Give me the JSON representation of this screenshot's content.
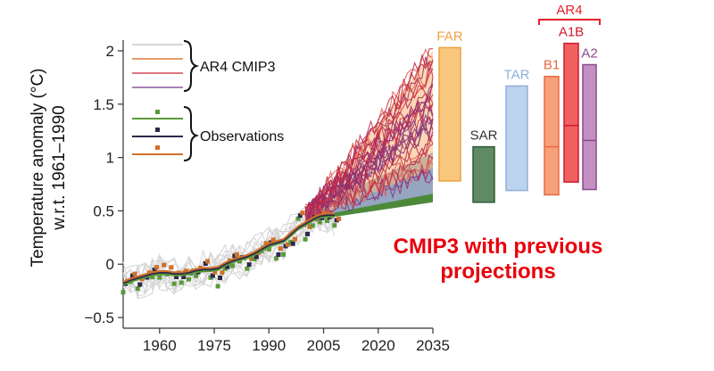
{
  "chart_data": {
    "type": "line",
    "caption_line1": "CMIP3 with previous",
    "caption_line2": "projections",
    "ylabel_line1": "Temperature anomaly (°C)",
    "ylabel_line2": "w.r.t. 1961–1990",
    "xlim": [
      1950,
      2035
    ],
    "ylim": [
      -0.6,
      2.1
    ],
    "x_ticks": [
      {
        "value": 1960,
        "label": "1960"
      },
      {
        "value": 1975,
        "label": "1975"
      },
      {
        "value": 1990,
        "label": "1990"
      },
      {
        "value": 2005,
        "label": "2005"
      },
      {
        "value": 2020,
        "label": "2020"
      },
      {
        "value": 2035,
        "label": "2035"
      }
    ],
    "y_ticks": [
      {
        "value": -0.5,
        "label": "−0.5"
      },
      {
        "value": 0,
        "label": "0"
      },
      {
        "value": 0.5,
        "label": "0.5"
      },
      {
        "value": 1,
        "label": "1"
      },
      {
        "value": 1.5,
        "label": "1.5"
      },
      {
        "value": 2,
        "label": "2"
      }
    ],
    "legend": {
      "model_group_label": "AR4 CMIP3",
      "model_line_colors": [
        "#c8c8c8",
        "#e07a3a",
        "#d24a5a",
        "#8a5a9a"
      ],
      "obs_group_label": "Observations",
      "obs_colors": [
        "#5a9a3a",
        "#2a2a4a",
        "#d0702a"
      ]
    },
    "observations": {
      "years": [
        1950,
        1952,
        1954,
        1956,
        1958,
        1960,
        1962,
        1964,
        1966,
        1968,
        1970,
        1972,
        1974,
        1976,
        1978,
        1980,
        1982,
        1984,
        1986,
        1988,
        1990,
        1992,
        1994,
        1996,
        1998,
        2000,
        2002,
        2004,
        2006,
        2008
      ],
      "values": [
        -0.2,
        -0.12,
        -0.18,
        -0.1,
        -0.06,
        -0.06,
        -0.08,
        -0.14,
        -0.12,
        -0.1,
        -0.06,
        -0.02,
        -0.1,
        -0.14,
        -0.02,
        0.05,
        0.04,
        0.02,
        0.06,
        0.18,
        0.2,
        0.08,
        0.14,
        0.22,
        0.44,
        0.3,
        0.42,
        0.46,
        0.44,
        0.4
      ],
      "smooth": [
        -0.18,
        -0.15,
        -0.13,
        -0.11,
        -0.09,
        -0.08,
        -0.08,
        -0.09,
        -0.09,
        -0.08,
        -0.06,
        -0.05,
        -0.05,
        -0.04,
        0.0,
        0.03,
        0.05,
        0.07,
        0.1,
        0.14,
        0.18,
        0.2,
        0.22,
        0.28,
        0.34,
        0.38,
        0.42,
        0.45,
        0.46,
        0.46
      ]
    },
    "projection_fan": {
      "start_year": 2000,
      "end_year": 2035,
      "low_end": 0.55,
      "high_end": 2.0
    },
    "assessment_bars": [
      {
        "label": "FAR",
        "low": 0.78,
        "high": 2.03,
        "mid": null,
        "fill": "#f9c77e",
        "stroke": "#f0a040",
        "text_color": "#f0a040",
        "group": ""
      },
      {
        "label": "SAR",
        "low": 0.58,
        "high": 1.1,
        "mid": null,
        "fill": "#5f8a64",
        "stroke": "#2f5a34",
        "text_color": "#333333",
        "group": ""
      },
      {
        "label": "TAR",
        "low": 0.69,
        "high": 1.67,
        "mid": null,
        "fill": "#bcd3ee",
        "stroke": "#8fb0d8",
        "text_color": "#8fb0d8",
        "group": ""
      },
      {
        "label": "B1",
        "low": 0.65,
        "high": 1.76,
        "mid": 1.1,
        "fill": "#f5a07a",
        "stroke": "#e86a40",
        "text_color": "#e86a40",
        "group": "AR4"
      },
      {
        "label": "A1B",
        "low": 0.77,
        "high": 2.07,
        "mid": 1.3,
        "fill": "#f06060",
        "stroke": "#d01830",
        "text_color": "#d01830",
        "group": "AR4"
      },
      {
        "label": "A2",
        "low": 0.7,
        "high": 1.87,
        "mid": 1.16,
        "fill": "#c490c4",
        "stroke": "#8a4a8a",
        "text_color": "#8a4a8a",
        "group": "AR4"
      }
    ],
    "ar4_group_label": "AR4"
  }
}
